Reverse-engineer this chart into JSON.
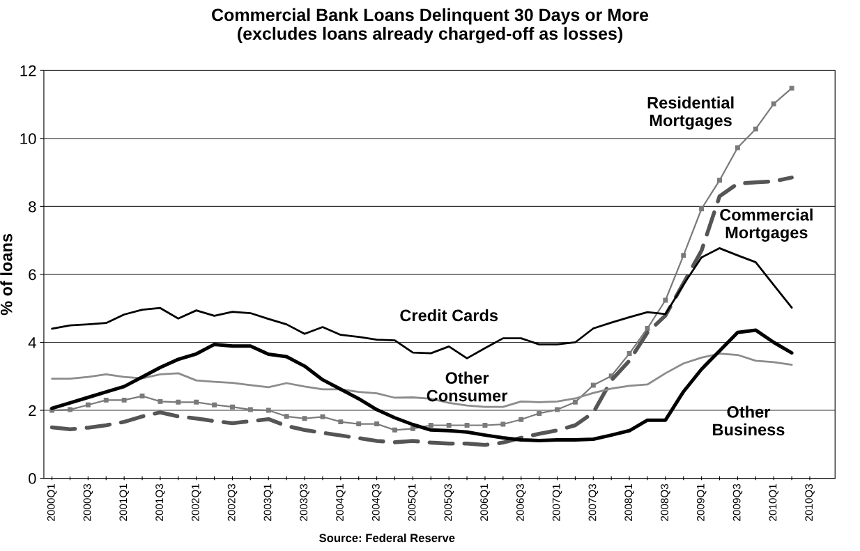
{
  "chart_data": {
    "type": "line",
    "title": "Commercial Bank Loans Delinquent 30 Days or More\n(excludes loans already charged-off as losses)",
    "ylabel": "% of loans",
    "categories": [
      "2000Q1",
      null,
      "2000Q3",
      null,
      "2001Q1",
      null,
      "2001Q3",
      null,
      "2002Q1",
      null,
      "2002Q3",
      null,
      "2003Q1",
      null,
      "2003Q3",
      null,
      "2004Q1",
      null,
      "2004Q3",
      null,
      "2005Q1",
      null,
      "2005Q3",
      null,
      "2006Q1",
      null,
      "2006Q3",
      null,
      "2007Q1",
      null,
      "2007Q3",
      null,
      "2008Q1",
      null,
      "2008Q3",
      null,
      "2009Q1",
      null,
      "2009Q3",
      null,
      "2010Q1",
      null,
      "2010Q3"
    ],
    "series": [
      {
        "name": "Residential\nMortgages",
        "color": "#7a7a7a",
        "marker": "square",
        "line_style": "solid",
        "values": [
          2.0,
          2.02,
          2.16,
          2.3,
          2.3,
          2.42,
          2.26,
          2.24,
          2.24,
          2.16,
          2.1,
          2.02,
          2.0,
          1.82,
          1.76,
          1.81,
          1.66,
          1.6,
          1.6,
          1.42,
          1.46,
          1.56,
          1.56,
          1.56,
          1.56,
          1.59,
          1.73,
          1.91,
          2.02,
          2.24,
          2.74,
          3.01,
          3.67,
          4.41,
          5.24,
          6.56,
          7.93,
          8.77,
          9.73,
          10.28,
          11.02,
          11.48,
          null
        ]
      },
      {
        "name": "Commercial\nMortgages",
        "color": "#555555",
        "marker": "none",
        "line_style": "dashed",
        "values": [
          1.5,
          1.44,
          1.49,
          1.56,
          1.66,
          1.82,
          1.94,
          1.82,
          1.76,
          1.68,
          1.62,
          1.68,
          1.74,
          1.54,
          1.42,
          1.34,
          1.26,
          1.18,
          1.1,
          1.06,
          1.1,
          1.05,
          1.02,
          1.02,
          0.98,
          1.05,
          1.19,
          1.31,
          1.41,
          1.56,
          1.93,
          2.88,
          3.46,
          4.29,
          4.79,
          5.74,
          6.7,
          8.3,
          8.67,
          8.71,
          8.74,
          8.85,
          null
        ]
      },
      {
        "name": "Credit Cards",
        "color": "#000000",
        "marker": "none",
        "line_style": "solid",
        "values": [
          4.4,
          4.5,
          4.53,
          4.57,
          4.82,
          4.96,
          5.01,
          4.7,
          4.94,
          4.78,
          4.9,
          4.86,
          4.69,
          4.53,
          4.25,
          4.45,
          4.22,
          4.16,
          4.08,
          4.06,
          3.7,
          3.68,
          3.88,
          3.53,
          3.83,
          4.12,
          4.12,
          3.94,
          3.94,
          4.0,
          4.41,
          4.58,
          4.74,
          4.89,
          4.83,
          5.7,
          6.5,
          6.77,
          6.56,
          6.36,
          5.69,
          5.02,
          null
        ]
      },
      {
        "name": "Other\nConsumer",
        "color": "#8c8c8c",
        "marker": "none",
        "line_style": "solid",
        "values": [
          2.93,
          2.93,
          2.98,
          3.06,
          2.98,
          2.94,
          3.06,
          3.09,
          2.88,
          2.84,
          2.81,
          2.74,
          2.68,
          2.8,
          2.7,
          2.62,
          2.62,
          2.54,
          2.5,
          2.37,
          2.38,
          2.34,
          2.22,
          2.14,
          2.1,
          2.1,
          2.26,
          2.24,
          2.26,
          2.35,
          2.51,
          2.64,
          2.72,
          2.76,
          3.09,
          3.38,
          3.55,
          3.67,
          3.63,
          3.46,
          3.42,
          3.34,
          null
        ]
      },
      {
        "name": "Other\nBusiness",
        "color": "#000000",
        "marker": "none",
        "line_style": "solid",
        "values": [
          2.06,
          2.22,
          2.38,
          2.54,
          2.7,
          2.98,
          3.26,
          3.5,
          3.66,
          3.94,
          3.89,
          3.89,
          3.65,
          3.58,
          3.3,
          2.9,
          2.62,
          2.34,
          2.02,
          1.78,
          1.58,
          1.42,
          1.4,
          1.36,
          1.27,
          1.19,
          1.13,
          1.11,
          1.13,
          1.13,
          1.15,
          1.27,
          1.4,
          1.71,
          1.71,
          2.55,
          3.21,
          3.75,
          4.29,
          4.36,
          4.0,
          3.69,
          null
        ]
      }
    ],
    "ylim": [
      0,
      12
    ],
    "yticks": [
      0,
      2,
      4,
      6,
      8,
      10,
      12
    ],
    "grid": "y",
    "legend": false,
    "annotations": [
      "Source: Federal Reserve"
    ]
  }
}
